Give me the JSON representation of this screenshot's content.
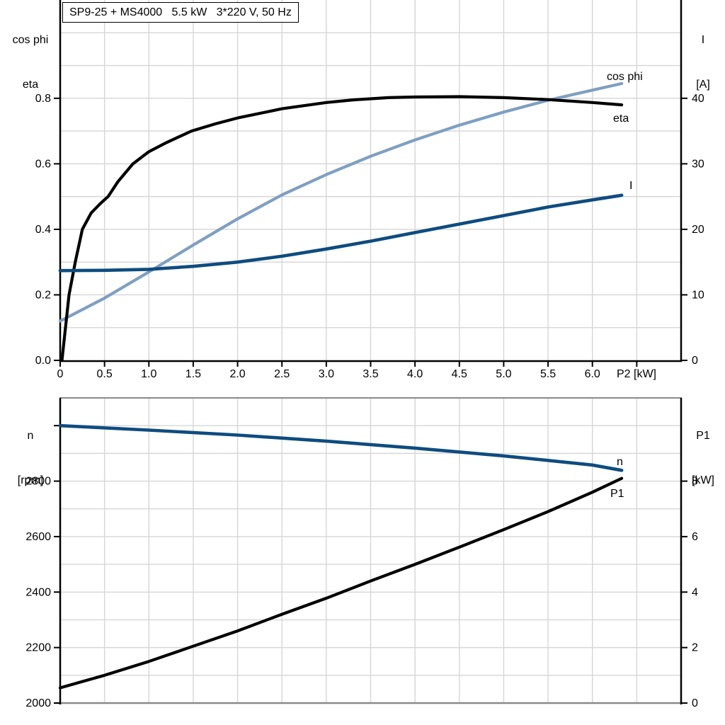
{
  "title": "SP9-25 + MS4000   5.5 kW   3*220 V, 50 Hz",
  "colors": {
    "black": "#000000",
    "dark_blue": "#0e4c7f",
    "light_blue": "#7e9fc2",
    "grid": "#d6d6d6",
    "frame_gray": "#8a8a8a"
  },
  "axis_titles": {
    "top_left_line1": "cos phi",
    "top_left_line2": "eta",
    "top_right_line1": "I",
    "top_right_line2": "[A]",
    "bottom_left_line1": "n",
    "bottom_left_line2": "[rpm]",
    "bottom_right_line1": "P1",
    "bottom_right_line2": "[kW]"
  },
  "chart_data": [
    {
      "type": "line",
      "title": "SP9-25 + MS4000 5.5 kW 3*220 V, 50 Hz",
      "xlabel": "P2 [kW]",
      "x_range": [
        0,
        7.0
      ],
      "grid_x_step": 0.5,
      "x_ticks": {
        "values": [
          0,
          0.5,
          1,
          1.5,
          2,
          2.5,
          3,
          3.5,
          4,
          4.5,
          5,
          5.5,
          6
        ],
        "labels": [
          "0",
          "0.5",
          "1.0",
          "1.5",
          "2.0",
          "2.5",
          "3.0",
          "3.5",
          "4.0",
          "4.5",
          "5.0",
          "5.5",
          "6.0"
        ]
      },
      "left_axis": {
        "label": "cos phi / eta",
        "range": [
          0,
          1.1
        ],
        "grid_step": 0.1,
        "ticks": {
          "values": [
            0,
            0.2,
            0.4,
            0.6,
            0.8
          ],
          "labels": [
            "0.0",
            "0.2",
            "0.4",
            "0.6",
            "0.8"
          ]
        }
      },
      "right_axis": {
        "label": "I [A]",
        "range": [
          0,
          55
        ],
        "ticks": {
          "values": [
            0,
            10,
            20,
            30,
            40
          ],
          "labels": [
            "0",
            "10",
            "20",
            "30",
            "40"
          ]
        }
      },
      "series": [
        {
          "name": "cos phi",
          "color": "light_blue",
          "axis": "left",
          "x": [
            0,
            0.5,
            1,
            1.5,
            2,
            2.5,
            3,
            3.5,
            4,
            4.5,
            5,
            5.5,
            6,
            6.33
          ],
          "values": [
            0.12,
            0.19,
            0.27,
            0.352,
            0.432,
            0.505,
            0.567,
            0.623,
            0.673,
            0.718,
            0.758,
            0.794,
            0.825,
            0.845
          ]
        },
        {
          "name": "eta",
          "color": "black",
          "axis": "left",
          "x": [
            0.02,
            0.06,
            0.1,
            0.17,
            0.25,
            0.35,
            0.45,
            0.54,
            0.65,
            0.82,
            1.0,
            1.2,
            1.48,
            1.75,
            2.0,
            2.5,
            3.0,
            3.3,
            3.7,
            4.0,
            4.5,
            5.0,
            5.5,
            6.0,
            6.33
          ],
          "values": [
            0,
            0.1,
            0.2,
            0.3,
            0.4,
            0.45,
            0.478,
            0.5,
            0.545,
            0.6,
            0.637,
            0.665,
            0.7,
            0.722,
            0.74,
            0.768,
            0.787,
            0.795,
            0.802,
            0.804,
            0.805,
            0.802,
            0.796,
            0.787,
            0.78
          ]
        },
        {
          "name": "I",
          "color": "dark_blue",
          "axis": "right",
          "x": [
            0,
            0.5,
            1,
            1.5,
            2,
            2.5,
            3,
            3.5,
            4,
            4.5,
            5,
            5.5,
            6,
            6.33
          ],
          "values": [
            13.7,
            13.75,
            13.9,
            14.35,
            15.0,
            15.9,
            17.0,
            18.2,
            19.5,
            20.8,
            22.1,
            23.4,
            24.5,
            25.2
          ]
        }
      ]
    },
    {
      "type": "line",
      "title": "",
      "xlabel": "",
      "x_range": [
        0,
        7.0
      ],
      "grid_x_step": 0.5,
      "left_axis": {
        "label": "n [rpm]",
        "range": [
          2000,
          3100
        ],
        "grid_step": 100,
        "ticks": {
          "values": [
            2000,
            2200,
            2400,
            2600,
            2800
          ],
          "labels": [
            "2000",
            "2200",
            "2400",
            "2600",
            "2800"
          ]
        },
        "extra_tick_values": [
          3000
        ]
      },
      "right_axis": {
        "label": "P1 [kW]",
        "range": [
          0,
          11
        ],
        "ticks": {
          "values": [
            0,
            2,
            4,
            6,
            8
          ],
          "labels": [
            "0",
            "2",
            "4",
            "6",
            "8"
          ]
        }
      },
      "series": [
        {
          "name": "n",
          "color": "dark_blue",
          "axis": "left",
          "x": [
            0,
            1,
            2,
            3,
            4,
            5,
            6,
            6.33
          ],
          "values": [
            3000,
            2984,
            2966,
            2944,
            2919,
            2891,
            2858,
            2839
          ]
        },
        {
          "name": "P1",
          "color": "black",
          "axis": "right",
          "x": [
            0,
            0.5,
            1,
            1.5,
            2,
            2.5,
            3,
            3.5,
            4,
            4.5,
            5,
            5.5,
            6,
            6.33
          ],
          "values": [
            0.55,
            1.0,
            1.5,
            2.05,
            2.6,
            3.2,
            3.78,
            4.4,
            5.0,
            5.62,
            6.25,
            6.9,
            7.6,
            8.1
          ]
        }
      ]
    }
  ]
}
